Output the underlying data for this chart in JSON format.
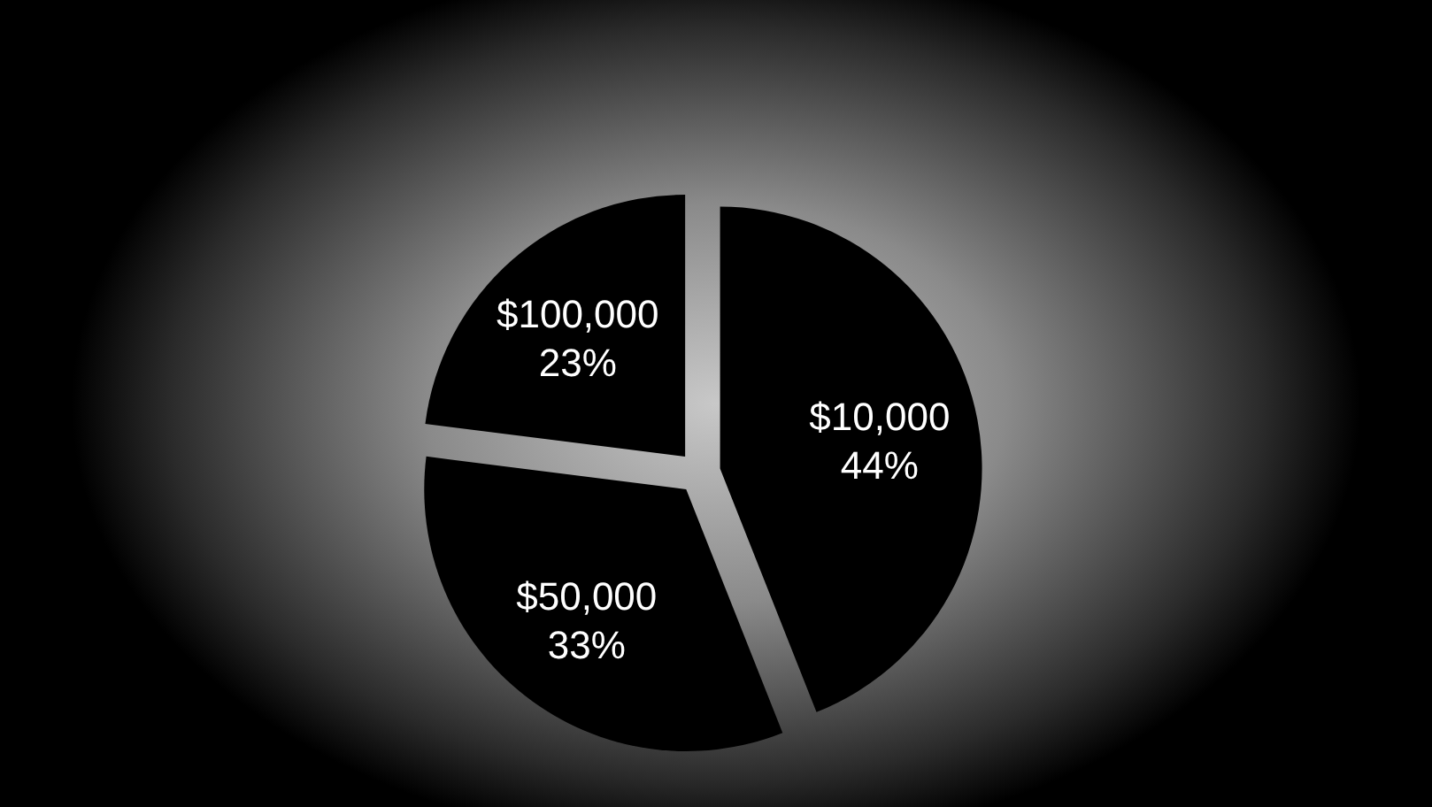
{
  "chart_data": {
    "type": "pie",
    "categories": [
      "$10,000",
      "$50,000",
      "$100,000"
    ],
    "values": [
      44,
      33,
      23
    ],
    "value_labels": [
      "44%",
      "33%",
      "23%"
    ],
    "colors": [
      "#000000",
      "#000000",
      "#000000"
    ]
  }
}
